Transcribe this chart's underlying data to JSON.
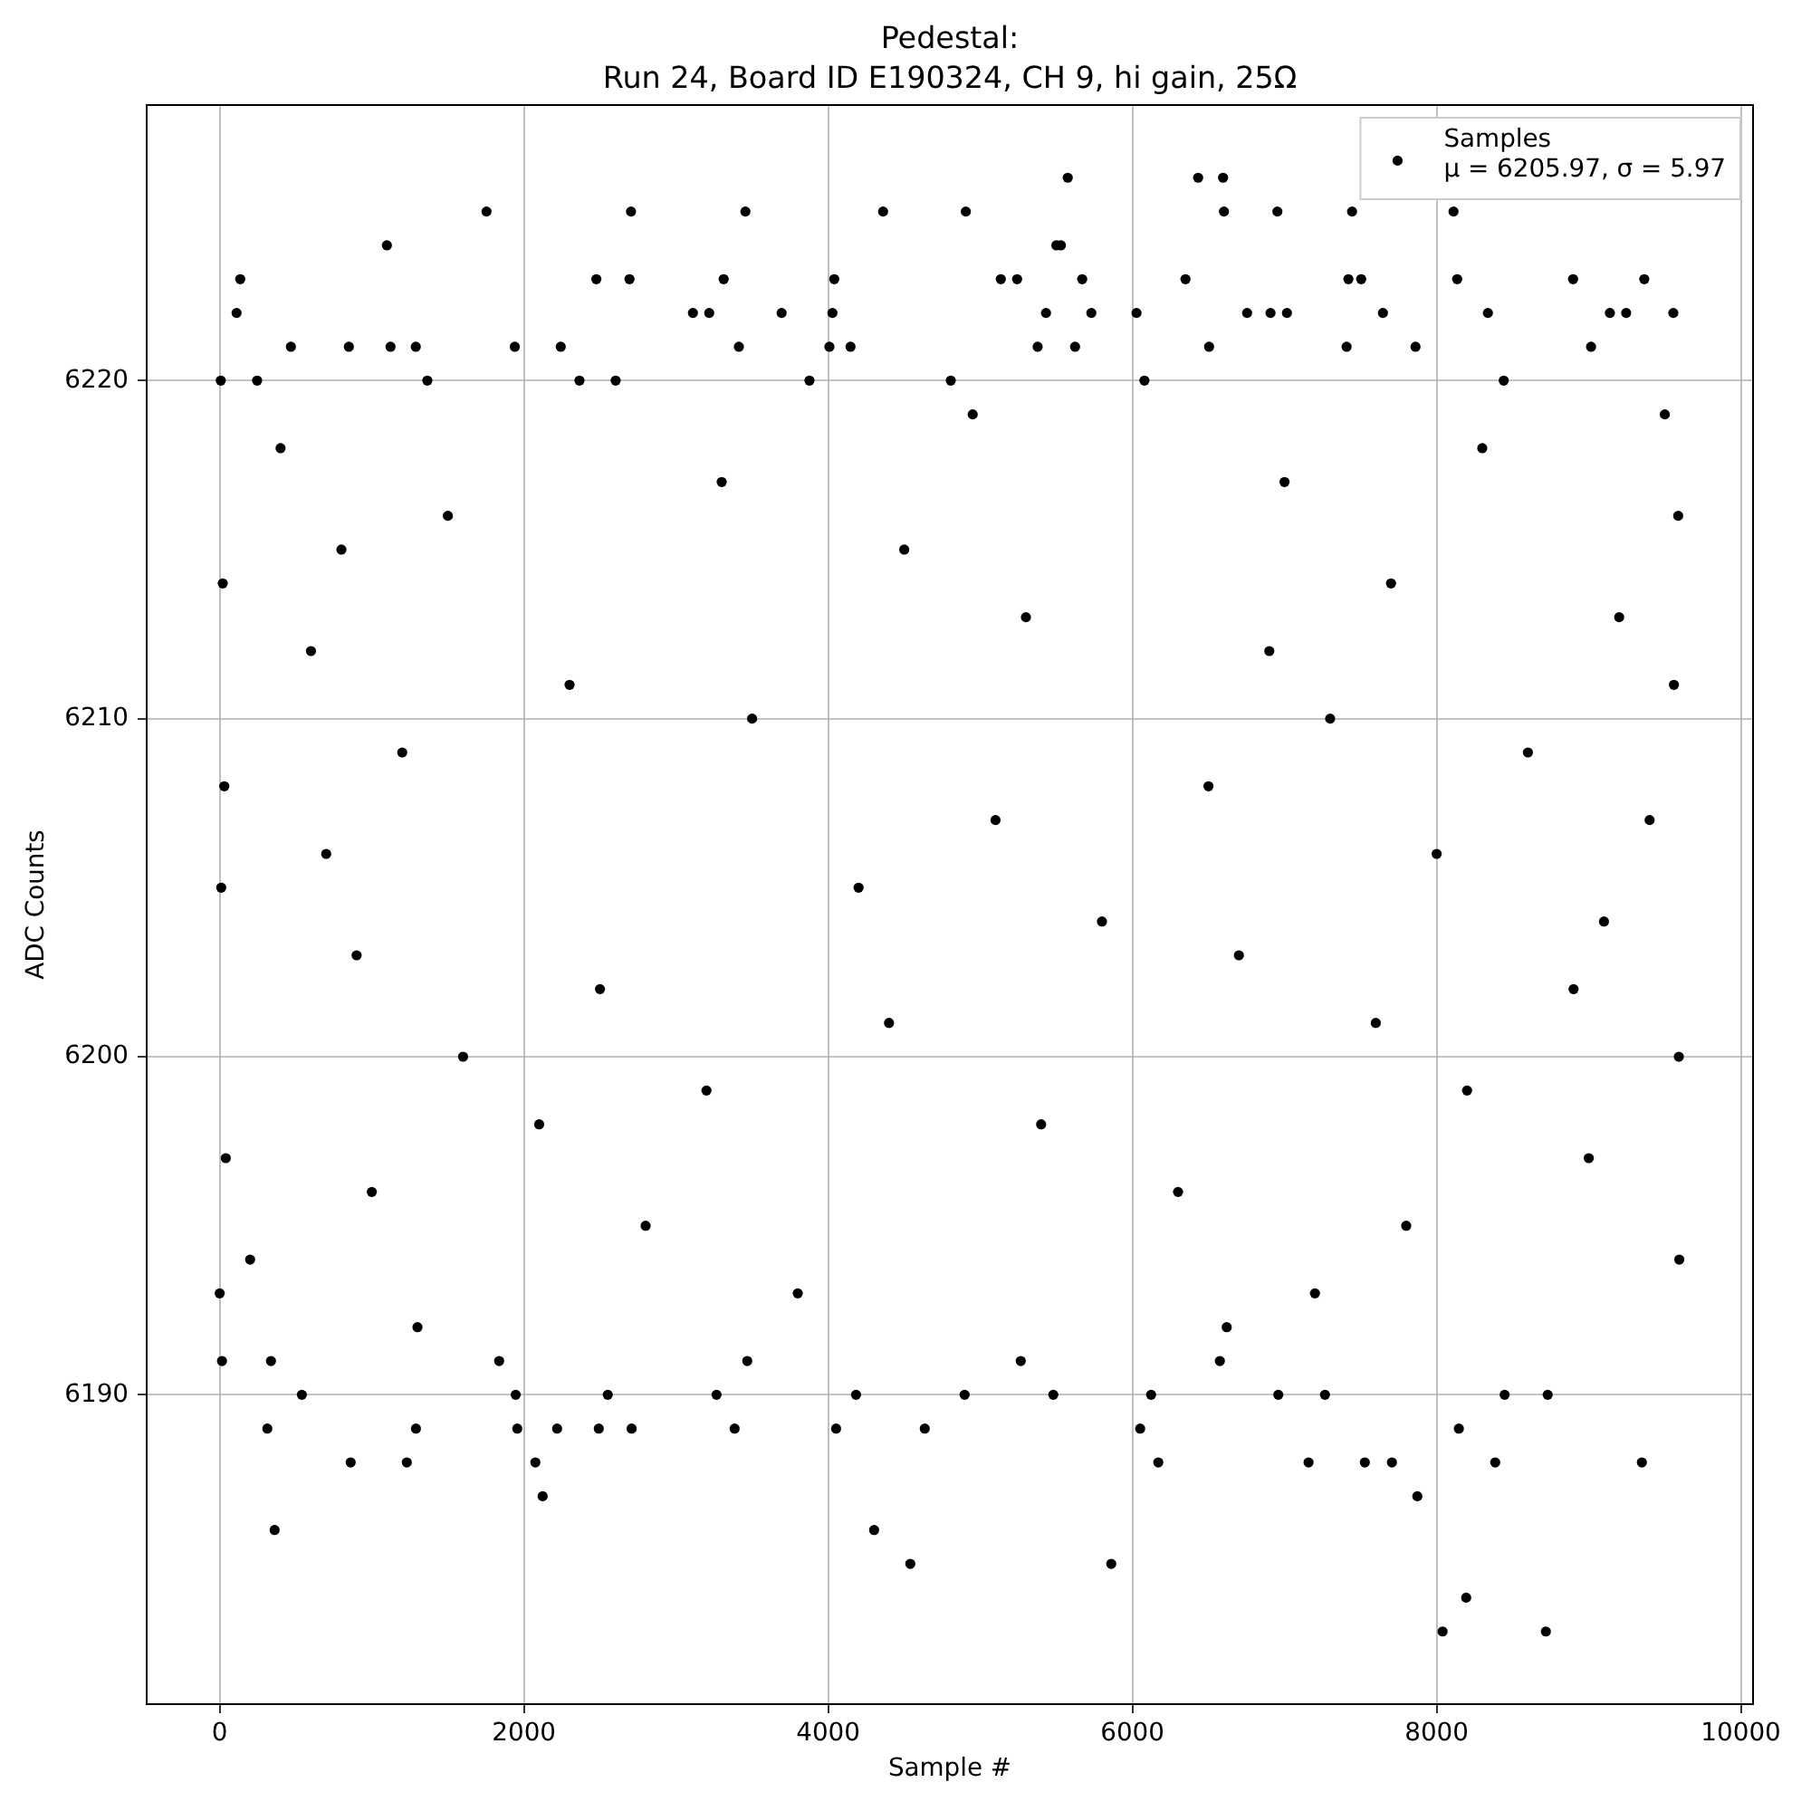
{
  "chart_data": {
    "type": "scatter",
    "title": "Pedestal:",
    "subtitle": "Run 24, Board ID E190324, CH 9, hi gain, 25Ω",
    "xlabel": "Sample #",
    "ylabel": "ADC Counts",
    "x": [
      0,
      7,
      10,
      15,
      20,
      30,
      40,
      111,
      135,
      200,
      246,
      313,
      337,
      361,
      400,
      468,
      540,
      600,
      700,
      800,
      849,
      861,
      900,
      1000,
      1099,
      1123,
      1200,
      1230,
      1289,
      1290,
      1300,
      1365,
      1500,
      1600,
      1754,
      1837,
      1940,
      1946,
      1956,
      2075,
      2100,
      2123,
      2218,
      2242,
      2300,
      2365,
      2476,
      2492,
      2500,
      2551,
      2603,
      2694,
      2704,
      2708,
      2800,
      3111,
      3200,
      3218,
      3266,
      3300,
      3313,
      3385,
      3413,
      3456,
      3468,
      3500,
      3694,
      3800,
      3877,
      4008,
      4028,
      4040,
      4052,
      4147,
      4183,
      4200,
      4302,
      4361,
      4400,
      4500,
      4540,
      4635,
      4806,
      4897,
      4905,
      4950,
      5100,
      5135,
      5242,
      5266,
      5300,
      5377,
      5400,
      5432,
      5480,
      5500,
      5530,
      5575,
      5623,
      5670,
      5730,
      5800,
      5861,
      6027,
      6051,
      6079,
      6123,
      6170,
      6300,
      6349,
      6432,
      6500,
      6504,
      6575,
      6596,
      6602,
      6620,
      6700,
      6754,
      6900,
      6908,
      6953,
      6959,
      7000,
      7016,
      7158,
      7200,
      7266,
      7300,
      7408,
      7420,
      7444,
      7504,
      7528,
      7600,
      7647,
      7700,
      7706,
      7800,
      7861,
      7873,
      8000,
      8039,
      8111,
      8135,
      8146,
      8194,
      8200,
      8300,
      8337,
      8385,
      8441,
      8447,
      8600,
      8718,
      8730,
      8897,
      8900,
      9000,
      9015,
      9100,
      9139,
      9200,
      9246,
      9349,
      9365,
      9400,
      9500,
      9556,
      9560,
      9588,
      9592,
      9595
    ],
    "series": [
      {
        "name": "Samples\nμ = 6205.97, σ = 5.97",
        "color": "#000000",
        "values": [
          6193,
          6220,
          6205,
          6191,
          6214,
          6208,
          6197,
          6222,
          6223,
          6194,
          6220,
          6189,
          6191,
          6186,
          6218,
          6221,
          6190,
          6212,
          6206,
          6215,
          6221,
          6188,
          6203,
          6196,
          6224,
          6221,
          6209,
          6188,
          6221,
          6189,
          6192,
          6220,
          6216,
          6200,
          6225,
          6191,
          6221,
          6190,
          6189,
          6188,
          6198,
          6187,
          6189,
          6221,
          6211,
          6220,
          6223,
          6189,
          6202,
          6190,
          6220,
          6223,
          6225,
          6189,
          6195,
          6222,
          6199,
          6222,
          6190,
          6217,
          6223,
          6189,
          6221,
          6225,
          6191,
          6210,
          6222,
          6193,
          6220,
          6221,
          6222,
          6223,
          6189,
          6221,
          6190,
          6205,
          6186,
          6225,
          6201,
          6215,
          6185,
          6189,
          6220,
          6190,
          6225,
          6219,
          6207,
          6223,
          6223,
          6191,
          6213,
          6221,
          6198,
          6222,
          6190,
          6224,
          6224,
          6226,
          6221,
          6223,
          6222,
          6204,
          6185,
          6222,
          6189,
          6220,
          6190,
          6188,
          6196,
          6223,
          6226,
          6208,
          6221,
          6191,
          6226,
          6225,
          6192,
          6203,
          6222,
          6212,
          6222,
          6225,
          6190,
          6217,
          6222,
          6188,
          6193,
          6190,
          6210,
          6221,
          6223,
          6225,
          6223,
          6188,
          6201,
          6222,
          6214,
          6188,
          6195,
          6221,
          6187,
          6206,
          6183,
          6225,
          6223,
          6189,
          6184,
          6199,
          6218,
          6222,
          6188,
          6220,
          6190,
          6209,
          6183,
          6190,
          6223,
          6202,
          6197,
          6221,
          6204,
          6222,
          6213,
          6222,
          6188,
          6223,
          6207,
          6219,
          6222,
          6211,
          6216,
          6200,
          6194
        ]
      }
    ],
    "xlim": [
      -480,
      10080
    ],
    "ylim": [
      6180.85,
      6228.15
    ],
    "xticks": [
      0,
      2000,
      4000,
      6000,
      8000,
      10000
    ],
    "yticks": [
      6190,
      6200,
      6210,
      6220
    ],
    "grid": true,
    "legend": "top right",
    "marker": "circle"
  }
}
